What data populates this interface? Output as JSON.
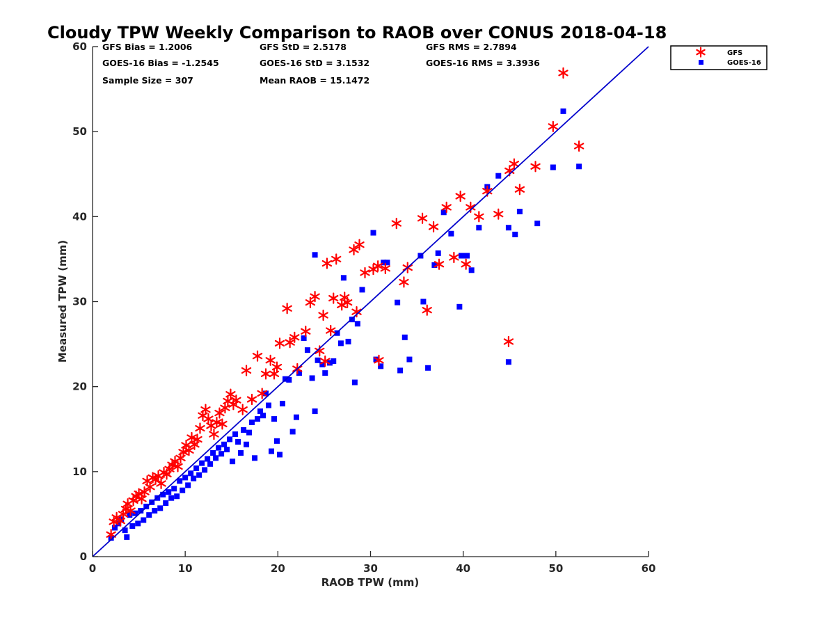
{
  "chart_data": {
    "type": "scatter",
    "title": "Cloudy TPW Weekly Comparison to RAOB over CONUS 2018-04-18",
    "xlabel": "RAOB TPW (mm)",
    "ylabel": "Measured TPW (mm)",
    "xlim": [
      0,
      60
    ],
    "ylim": [
      0,
      60
    ],
    "xticks": [
      "0",
      "10",
      "20",
      "30",
      "40",
      "50",
      "60"
    ],
    "yticks": [
      "0",
      "10",
      "20",
      "30",
      "40",
      "50",
      "60"
    ],
    "grid": false,
    "legend_position": "top-right, outside plot",
    "stats": {
      "gfs_bias": "GFS Bias = 1.2006",
      "goes_bias": "GOES-16 Bias = -1.2545",
      "sample_size": "Sample Size = 307",
      "gfs_std": "GFS StD = 2.5178",
      "goes_std": "GOES-16 StD = 3.1532",
      "mean_raob": "Mean RAOB = 15.1472",
      "gfs_rms": "GFS RMS = 2.7894",
      "goes_rms": "GOES-16 RMS = 3.3936"
    },
    "reference_line": {
      "x": [
        0,
        60
      ],
      "y": [
        0,
        60
      ],
      "color": "#0000cc"
    },
    "series": [
      {
        "name": "GFS",
        "marker": "asterisk",
        "color": "#ff0000",
        "points": [
          [
            2,
            2.6
          ],
          [
            2.3,
            4.1
          ],
          [
            2.6,
            4.6
          ],
          [
            3,
            4.2
          ],
          [
            3.3,
            5
          ],
          [
            3.6,
            5.6
          ],
          [
            3.8,
            6.2
          ],
          [
            4.1,
            5.4
          ],
          [
            4.4,
            6.6
          ],
          [
            4.7,
            7.1
          ],
          [
            5,
            7.4
          ],
          [
            5.3,
            6.8
          ],
          [
            5.6,
            7.6
          ],
          [
            5.9,
            8.9
          ],
          [
            6.2,
            8.2
          ],
          [
            6.5,
            9.3
          ],
          [
            6.8,
            9.1
          ],
          [
            7.1,
            9.5
          ],
          [
            7.4,
            8.6
          ],
          [
            7.7,
            9.9
          ],
          [
            8,
            9.7
          ],
          [
            8.3,
            10.3
          ],
          [
            8.6,
            10.8
          ],
          [
            8.9,
            11.2
          ],
          [
            9.2,
            10.6
          ],
          [
            9.5,
            11.6
          ],
          [
            9.8,
            12.3
          ],
          [
            10.1,
            13.1
          ],
          [
            10.4,
            12.5
          ],
          [
            10.7,
            14
          ],
          [
            11,
            13.2
          ],
          [
            11.3,
            13.8
          ],
          [
            11.6,
            15.1
          ],
          [
            11.9,
            16.6
          ],
          [
            12.2,
            17.3
          ],
          [
            12.5,
            16.2
          ],
          [
            12.8,
            15.4
          ],
          [
            13.1,
            14.4
          ],
          [
            13.4,
            15.8
          ],
          [
            13.7,
            16.9
          ],
          [
            14,
            15.6
          ],
          [
            14.3,
            17.5
          ],
          [
            14.6,
            18.3
          ],
          [
            14.9,
            19.1
          ],
          [
            15.2,
            17.9
          ],
          [
            15.5,
            18.4
          ],
          [
            16.2,
            17.3
          ],
          [
            16.6,
            21.9
          ],
          [
            17.2,
            18.5
          ],
          [
            17.8,
            23.6
          ],
          [
            18.3,
            19.2
          ],
          [
            18.7,
            21.5
          ],
          [
            19.2,
            23.1
          ],
          [
            19.6,
            21.5
          ],
          [
            19.9,
            22.3
          ],
          [
            20.2,
            25.1
          ],
          [
            21,
            29.2
          ],
          [
            21.3,
            25.2
          ],
          [
            21.8,
            25.8
          ],
          [
            22.1,
            22.1
          ],
          [
            23,
            26.5
          ],
          [
            23.5,
            29.9
          ],
          [
            24,
            30.6
          ],
          [
            24.5,
            24.2
          ],
          [
            24.9,
            28.4
          ],
          [
            25.3,
            34.5
          ],
          [
            25.7,
            26.6
          ],
          [
            26,
            30.4
          ],
          [
            26.3,
            35
          ],
          [
            26.9,
            29.6
          ],
          [
            27.2,
            30.5
          ],
          [
            27.5,
            29.9
          ],
          [
            28.2,
            36.1
          ],
          [
            28.5,
            28.8
          ],
          [
            28.8,
            36.7
          ],
          [
            29.4,
            33.4
          ],
          [
            30.3,
            33.8
          ],
          [
            30.8,
            34.2
          ],
          [
            31.6,
            33.9
          ],
          [
            32.8,
            39.2
          ],
          [
            33.6,
            32.3
          ],
          [
            34,
            34
          ],
          [
            35.6,
            39.8
          ],
          [
            36.1,
            29
          ],
          [
            36.8,
            38.8
          ],
          [
            37.4,
            34.4
          ],
          [
            38.2,
            41.1
          ],
          [
            39,
            35.2
          ],
          [
            39.7,
            42.4
          ],
          [
            40.3,
            34.4
          ],
          [
            40.8,
            41.1
          ],
          [
            41.7,
            40
          ],
          [
            42.6,
            43
          ],
          [
            43.8,
            40.3
          ],
          [
            45,
            45.4
          ],
          [
            45.5,
            46.2
          ],
          [
            46.1,
            43.2
          ],
          [
            47.8,
            45.9
          ],
          [
            49.7,
            50.6
          ],
          [
            50.8,
            56.9
          ],
          [
            52.5,
            48.3
          ],
          [
            44.9,
            25.3
          ],
          [
            30.9,
            23.1
          ],
          [
            25.1,
            23
          ]
        ]
      },
      {
        "name": "GOES-16",
        "marker": "square",
        "color": "#0000ff",
        "points": [
          [
            2,
            2.2
          ],
          [
            2.4,
            3.4
          ],
          [
            2.8,
            3.9
          ],
          [
            3.1,
            4.4
          ],
          [
            3.5,
            3.1
          ],
          [
            3.7,
            2.3
          ],
          [
            4,
            4.9
          ],
          [
            4.3,
            3.6
          ],
          [
            4.6,
            5.1
          ],
          [
            4.9,
            3.9
          ],
          [
            5.2,
            5.4
          ],
          [
            5.5,
            4.3
          ],
          [
            5.8,
            5.9
          ],
          [
            6.1,
            4.9
          ],
          [
            6.4,
            6.4
          ],
          [
            6.7,
            5.4
          ],
          [
            7,
            6.9
          ],
          [
            7.3,
            5.7
          ],
          [
            7.6,
            7.3
          ],
          [
            7.9,
            6.3
          ],
          [
            8.2,
            7.6
          ],
          [
            8.5,
            6.9
          ],
          [
            8.8,
            8
          ],
          [
            9.1,
            7.1
          ],
          [
            9.4,
            8.9
          ],
          [
            9.7,
            7.8
          ],
          [
            10,
            9.3
          ],
          [
            10.3,
            8.4
          ],
          [
            10.6,
            9.8
          ],
          [
            10.9,
            9.2
          ],
          [
            11.2,
            10.4
          ],
          [
            11.5,
            9.6
          ],
          [
            11.8,
            11
          ],
          [
            12.1,
            10.2
          ],
          [
            12.4,
            11.5
          ],
          [
            12.7,
            10.9
          ],
          [
            13,
            12.2
          ],
          [
            13.3,
            11.6
          ],
          [
            13.6,
            12.8
          ],
          [
            13.9,
            12.1
          ],
          [
            14.2,
            13.2
          ],
          [
            14.5,
            12.6
          ],
          [
            14.8,
            13.8
          ],
          [
            15.1,
            11.2
          ],
          [
            15.4,
            14.4
          ],
          [
            15.7,
            13.5
          ],
          [
            16,
            12.2
          ],
          [
            16.3,
            14.9
          ],
          [
            16.6,
            13.2
          ],
          [
            16.9,
            14.6
          ],
          [
            17.2,
            15.8
          ],
          [
            17.5,
            11.6
          ],
          [
            17.8,
            16.2
          ],
          [
            18.1,
            17.1
          ],
          [
            18.4,
            16.6
          ],
          [
            18.7,
            19.2
          ],
          [
            19,
            17.8
          ],
          [
            19.3,
            12.4
          ],
          [
            19.6,
            16.2
          ],
          [
            19.9,
            13.6
          ],
          [
            20.2,
            12
          ],
          [
            20.5,
            18
          ],
          [
            20.8,
            20.9
          ],
          [
            21.2,
            20.8
          ],
          [
            21.6,
            14.7
          ],
          [
            22,
            16.4
          ],
          [
            22.3,
            21.6
          ],
          [
            22.8,
            25.7
          ],
          [
            23.2,
            24.3
          ],
          [
            23.7,
            21
          ],
          [
            24,
            35.5
          ],
          [
            24,
            17.1
          ],
          [
            24.3,
            23.1
          ],
          [
            24.8,
            22.6
          ],
          [
            25.1,
            21.6
          ],
          [
            25.6,
            22.8
          ],
          [
            26,
            23
          ],
          [
            26.4,
            26.3
          ],
          [
            26.8,
            25.1
          ],
          [
            27.1,
            32.8
          ],
          [
            27.6,
            25.3
          ],
          [
            28,
            27.9
          ],
          [
            28.3,
            20.5
          ],
          [
            28.6,
            27.4
          ],
          [
            29.1,
            31.4
          ],
          [
            30.3,
            38.1
          ],
          [
            30.6,
            23.2
          ],
          [
            31.1,
            22.4
          ],
          [
            31.4,
            34.6
          ],
          [
            31.8,
            34.6
          ],
          [
            32.9,
            29.9
          ],
          [
            33.2,
            21.9
          ],
          [
            33.7,
            25.8
          ],
          [
            34.2,
            23.2
          ],
          [
            35.4,
            35.4
          ],
          [
            35.7,
            30
          ],
          [
            36.2,
            22.2
          ],
          [
            36.9,
            34.3
          ],
          [
            37.3,
            35.7
          ],
          [
            37.9,
            40.5
          ],
          [
            38.7,
            38
          ],
          [
            39.6,
            29.4
          ],
          [
            39.8,
            35.4
          ],
          [
            40.4,
            35.4
          ],
          [
            40.9,
            33.7
          ],
          [
            41.7,
            38.7
          ],
          [
            42.6,
            43.5
          ],
          [
            43.8,
            44.8
          ],
          [
            44.9,
            22.9
          ],
          [
            44.9,
            38.7
          ],
          [
            45.6,
            37.9
          ],
          [
            46.1,
            40.6
          ],
          [
            48,
            39.2
          ],
          [
            49.7,
            45.8
          ],
          [
            50.8,
            52.4
          ],
          [
            52.5,
            45.9
          ]
        ]
      }
    ]
  }
}
